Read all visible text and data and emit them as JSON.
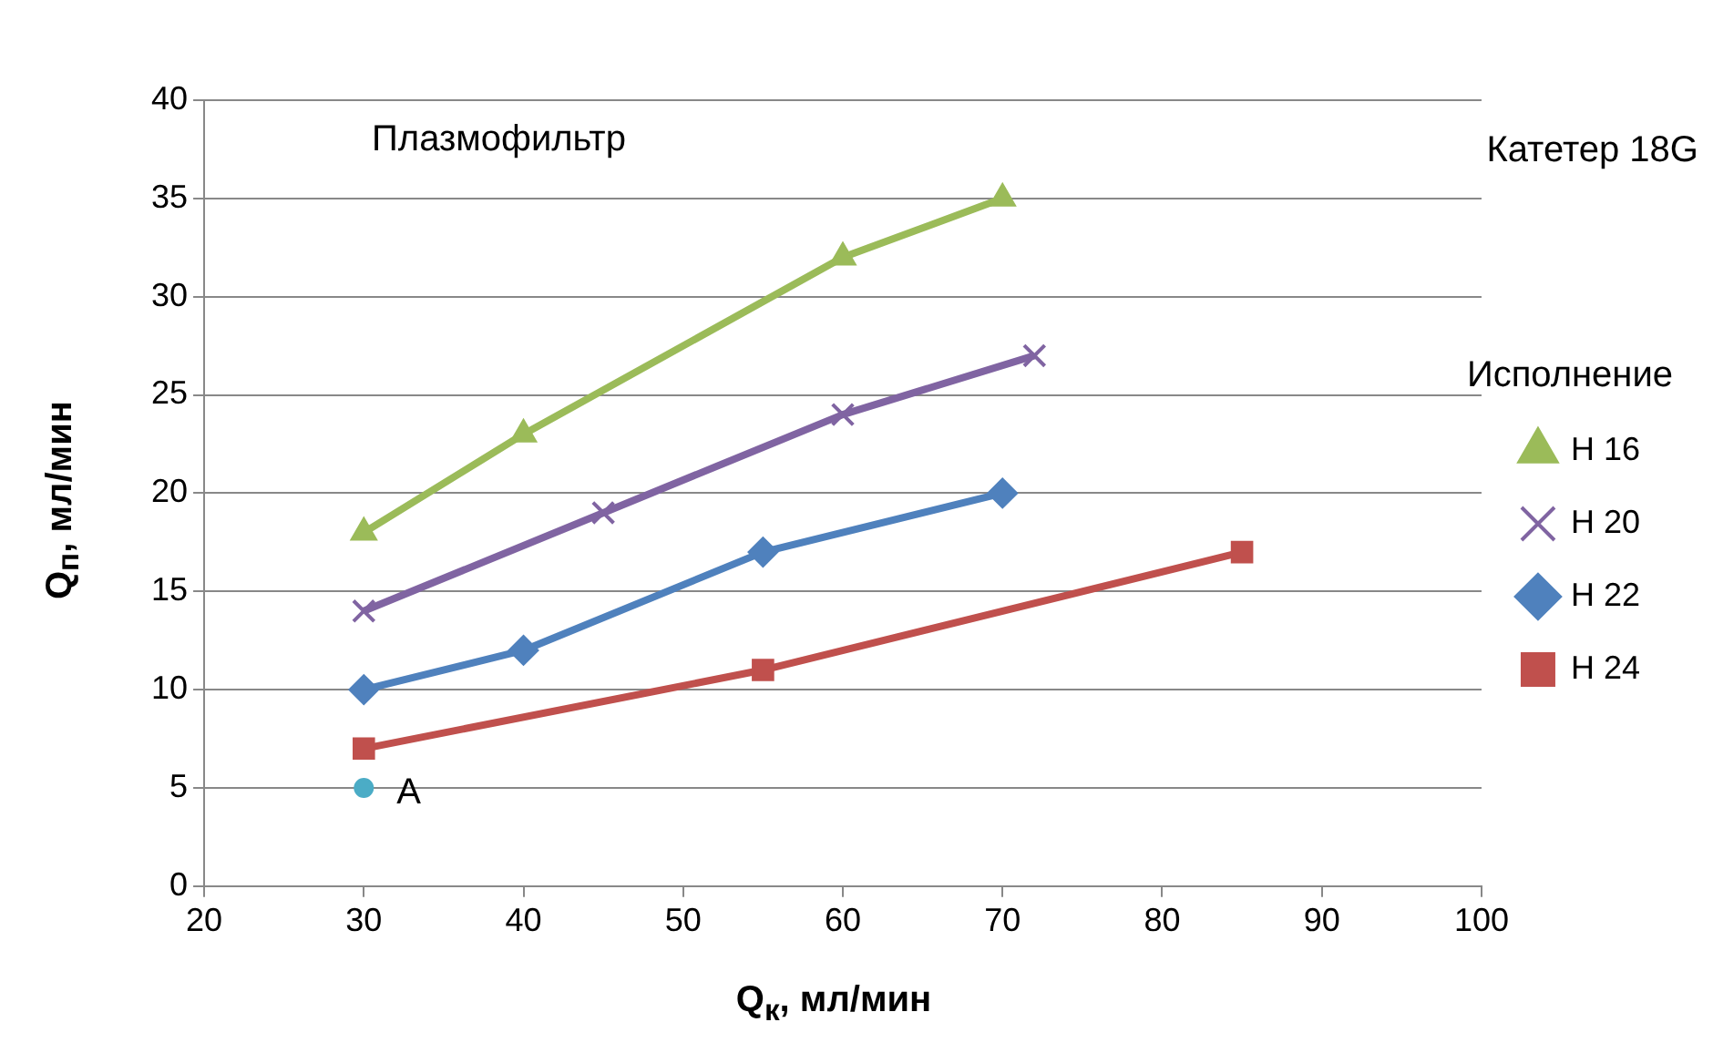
{
  "chart_data": {
    "type": "line",
    "title": "Плазмофильтр",
    "xlabel": "Q$_{к}$, мл/мин",
    "ylabel": "Q$_{п}$, мл/мин",
    "legend_title": "Исполнение",
    "annotations": [
      "Катетер 18G",
      {
        "text": "A",
        "x": 30,
        "y": 5
      }
    ],
    "xlim": [
      20,
      100
    ],
    "xticks": [
      20,
      30,
      40,
      50,
      60,
      70,
      80,
      90,
      100
    ],
    "ylim": [
      0,
      40
    ],
    "yticks": [
      0,
      5,
      10,
      15,
      20,
      25,
      30,
      35,
      40
    ],
    "grid": "y",
    "legend": "right",
    "line_style": "solid",
    "series": [
      {
        "name": "Н 16",
        "color": "#9bbb59",
        "marker": "triangle",
        "x": [
          30,
          40,
          60,
          70
        ],
        "values": [
          18,
          23,
          32,
          35
        ]
      },
      {
        "name": "Н 20",
        "color": "#8064a2",
        "marker": "cross",
        "x": [
          30,
          45,
          60,
          72
        ],
        "values": [
          14,
          19,
          24,
          27
        ]
      },
      {
        "name": "Н 22",
        "color": "#4f81bd",
        "marker": "diamond",
        "x": [
          30,
          40,
          55,
          70
        ],
        "values": [
          10,
          12,
          17,
          20
        ]
      },
      {
        "name": "Н 24",
        "color": "#c0504d",
        "marker": "square",
        "x": [
          30,
          55,
          85
        ],
        "values": [
          7,
          11,
          17
        ]
      },
      {
        "type": "scatter",
        "color": "#4bacc6",
        "marker": "circle",
        "x": [
          30
        ],
        "values": [
          5
        ]
      }
    ]
  }
}
